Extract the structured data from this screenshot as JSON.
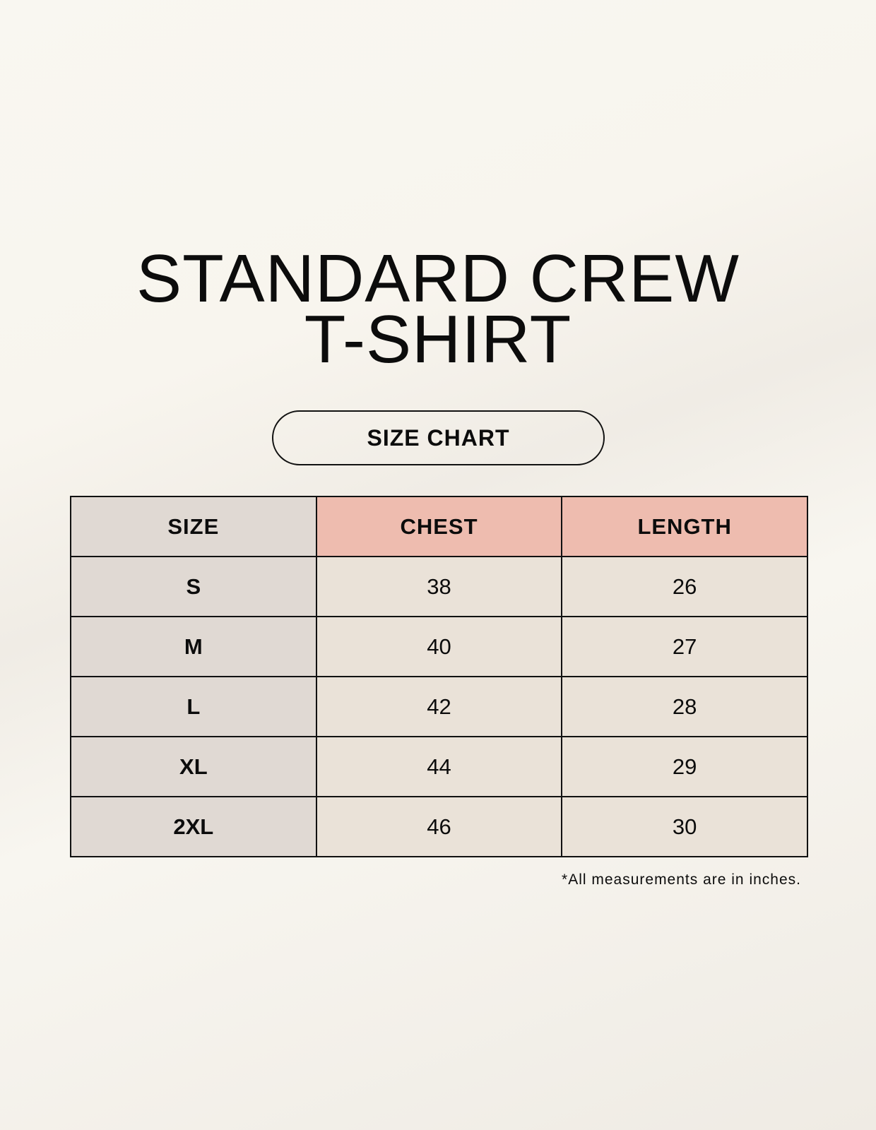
{
  "title": {
    "line1": "STANDARD CREW",
    "line2": "T-SHIRT"
  },
  "subtitle": "SIZE CHART",
  "table": {
    "headers": [
      "SIZE",
      "CHEST",
      "LENGTH"
    ],
    "rows": [
      [
        "S",
        "38",
        "26"
      ],
      [
        "M",
        "40",
        "27"
      ],
      [
        "L",
        "42",
        "28"
      ],
      [
        "XL",
        "44",
        "29"
      ],
      [
        "2XL",
        "46",
        "30"
      ]
    ]
  },
  "footnote": "*All measurements are in inches.",
  "colors": {
    "size_column": "#e0d9d3",
    "header_accent": "#eebcaf",
    "cell": "#eae2d8"
  }
}
